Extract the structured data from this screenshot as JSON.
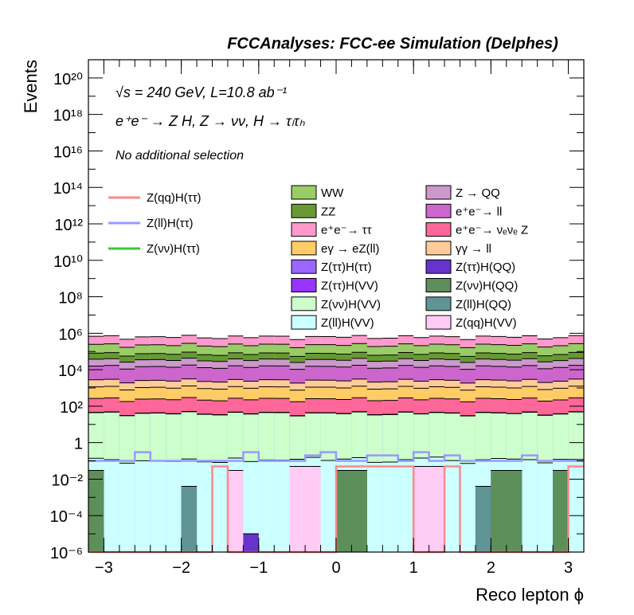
{
  "chart_data": {
    "type": "histogram-stack",
    "title": "FCCAnalyses: FCC-ee Simulation (Delphes)",
    "info_lines": [
      "√s = 240 GeV, L=10.8 ab⁻¹",
      "e⁺e⁻ → Z H, Z → νν, H → τₗτₕ",
      "No additional selection"
    ],
    "xlabel": "Reco lepton ϕ",
    "ylabel": "Events",
    "log_y": true,
    "xlim": [
      -3.2,
      3.2
    ],
    "ylim": [
      1e-06,
      1e+21
    ],
    "n_bins": 32,
    "x_ticks": [
      "−3",
      "−2",
      "−1",
      "0",
      "1",
      "2",
      "3"
    ],
    "y_ticks": [
      "10⁻⁶",
      "10⁻⁴",
      "10⁻²",
      "1",
      "10²",
      "10⁴",
      "10⁶",
      "10⁸",
      "10¹⁰",
      "10¹²",
      "10¹⁴",
      "10¹⁶",
      "10¹⁸",
      "10²⁰"
    ],
    "stack_levels": [
      {
        "name": "Z(νν)H(QQ)",
        "color": "#5d8f5a",
        "per_bin": "sparse",
        "values": [
          0.03,
          0,
          0,
          0,
          0,
          0,
          0,
          0,
          0,
          0,
          0,
          0,
          0,
          0,
          0,
          0,
          0.03,
          0.03,
          0,
          0,
          0,
          0,
          0,
          0,
          0,
          0,
          0.03,
          0.03,
          0,
          0,
          0.03,
          0
        ]
      },
      {
        "name": "Z(ll)H(QQ)",
        "color": "#5f9595",
        "per_bin": "sparse",
        "values": [
          0,
          0,
          0,
          0,
          0,
          0,
          0.004,
          0,
          0,
          0,
          0,
          0,
          0,
          0,
          0,
          0,
          0,
          0,
          0,
          0,
          0,
          0,
          0,
          0,
          0,
          0.004,
          0,
          0,
          0,
          0,
          0,
          0
        ]
      },
      {
        "name": "Z(ττ)H(QQ)",
        "color": "#6633cc",
        "per_bin": "sparse",
        "values": [
          0,
          0,
          0,
          0,
          0,
          0,
          0,
          0,
          0,
          0,
          1e-05,
          0,
          0,
          0,
          0,
          0,
          0,
          0,
          0,
          0,
          0,
          0,
          0,
          0,
          0,
          0,
          0,
          0,
          0,
          0,
          0,
          0
        ]
      },
      {
        "name": "Z(qq)H(VV)",
        "color": "#ffccf5",
        "per_bin": "sparse",
        "values": [
          0,
          0,
          0,
          0,
          0,
          0,
          0,
          0,
          0,
          0.03,
          0,
          0,
          0,
          0.05,
          0.05,
          0,
          0,
          0,
          0,
          0,
          0,
          0.05,
          0.05,
          0,
          0,
          0,
          0,
          0,
          0,
          0,
          0,
          0
        ]
      },
      {
        "name": "Z(ll)H(VV)",
        "color": "#ccffff",
        "total": 0.1
      },
      {
        "name": "Z(νν)H(VV)",
        "color": "#ccffcc",
        "total": 40
      },
      {
        "name": "Z(ττ)H(VV)",
        "color": "#9933ff",
        "total": 0.6
      },
      {
        "name": "Z(ττ)H(ττ)",
        "color": "#9966ff",
        "total": 0.9
      },
      {
        "name": "e⁺e⁻→ νₑνₑ Z",
        "color": "#ff6699",
        "total": 200
      },
      {
        "name": "eγ → eZ(ll)",
        "color": "#ffcc66",
        "total": 800
      },
      {
        "name": "γγ → ll",
        "color": "#ffcc99",
        "total": 1500
      },
      {
        "name": "e⁺e⁻→ ll",
        "color": "#cc66cc",
        "total": 12000
      },
      {
        "name": "Z → QQ",
        "color": "#cc99cc",
        "total": 20000
      },
      {
        "name": "ZZ",
        "color": "#669933",
        "total": 40000
      },
      {
        "name": "WW",
        "color": "#99cc66",
        "total": 150000
      },
      {
        "name": "e⁺e⁻→ ττ",
        "color": "#ff99cc",
        "total": 400000
      }
    ],
    "signal_lines": [
      {
        "name": "Z(qq)H(ττ)",
        "color": "#ff8888",
        "values": [
          1e-06,
          1e-06,
          1e-06,
          1e-06,
          1e-06,
          1e-06,
          1e-06,
          1e-06,
          0.05,
          1e-06,
          1e-06,
          1e-06,
          1e-06,
          1e-06,
          1e-06,
          1e-06,
          0.05,
          0.05,
          0.05,
          0.05,
          0.05,
          1e-06,
          1e-06,
          0.05,
          1e-06,
          1e-06,
          1e-06,
          1e-06,
          1e-06,
          1e-06,
          1e-06,
          0.05
        ]
      },
      {
        "name": "Z(ll)H(ττ)",
        "color": "#9999ff",
        "values": [
          0.1,
          0.1,
          0.1,
          0.3,
          0.1,
          0.1,
          0.1,
          0.1,
          0.1,
          0.1,
          0.3,
          0.1,
          0.1,
          0.1,
          0.2,
          0.3,
          0.1,
          0.1,
          0.2,
          0.2,
          0.1,
          0.3,
          0.1,
          0.2,
          0.1,
          0.1,
          0.1,
          0.1,
          0.2,
          0.1,
          0.1,
          0.1
        ]
      },
      {
        "name": "Z(νν)H(ττ)",
        "color": "#33cc33",
        "values": []
      }
    ],
    "legend_cols": [
      [
        "WW",
        "ZZ",
        "e⁺e⁻→ ττ",
        "eγ → eZ(ll)",
        "Z(ττ)H(ττ)",
        "Z(ττ)H(VV)",
        "Z(νν)H(VV)",
        "Z(ll)H(VV)"
      ],
      [
        "Z → QQ",
        "e⁺e⁻→ ll",
        "e⁺e⁻→ νₑνₑ Z",
        "γγ → ll",
        "Z(ττ)H(QQ)",
        "Z(νν)H(QQ)",
        "Z(ll)H(QQ)",
        "Z(qq)H(VV)"
      ]
    ],
    "legend_colors": {
      "WW": "#99cc66",
      "ZZ": "#669933",
      "e⁺e⁻→ ττ": "#ff99cc",
      "eγ → eZ(ll)": "#ffcc66",
      "Z(ττ)H(ττ)": "#9966ff",
      "Z(ττ)H(VV)": "#9933ff",
      "Z(νν)H(VV)": "#ccffcc",
      "Z(ll)H(VV)": "#ccffff",
      "Z → QQ": "#cc99cc",
      "e⁺e⁻→ ll": "#cc66cc",
      "e⁺e⁻→ νₑνₑ Z": "#ff6699",
      "γγ → ll": "#ffcc99",
      "Z(ττ)H(QQ)": "#6633cc",
      "Z(νν)H(QQ)": "#5d8f5a",
      "Z(ll)H(QQ)": "#5f9595",
      "Z(qq)H(VV)": "#ffccf5"
    }
  }
}
